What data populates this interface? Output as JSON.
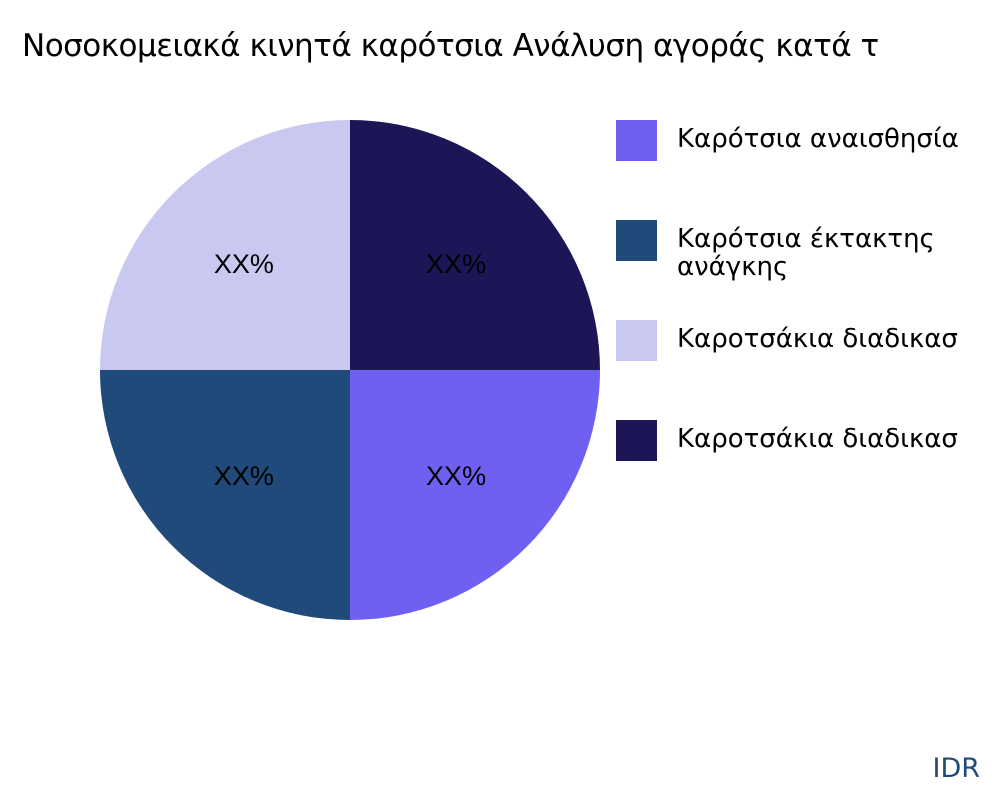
{
  "chart_data": {
    "type": "pie",
    "title": "Νοσοκομειακά κινητά καρότσια Ανάλυση αγοράς κατά τ",
    "slices": [
      {
        "name": "Καρότσια αναισθησία",
        "value": 25,
        "label": "XX%",
        "color": "#7060f2"
      },
      {
        "name": "Καρότσια έκτακτης ανάγκης",
        "value": 25,
        "label": "XX%",
        "color": "#1f4a7a"
      },
      {
        "name": "Καροτσάκια διαδικασ",
        "value": 25,
        "label": "XX%",
        "color": "#c8c8f0"
      },
      {
        "name": "Καροτσάκια διαδικασ",
        "value": 25,
        "label": "XX%",
        "color": "#1c1656"
      }
    ],
    "direction": "clockwise",
    "start": "3 o'clock",
    "legend_position": "right"
  },
  "brand": "IDR"
}
